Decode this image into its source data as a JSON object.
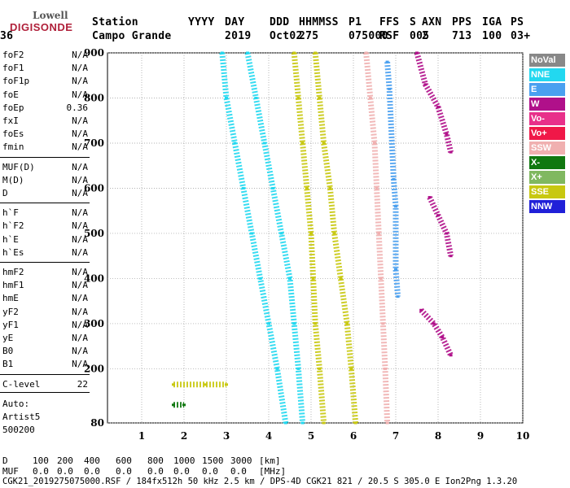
{
  "logo": {
    "line1": "Lowell",
    "line2": "DIGISONDE"
  },
  "header": {
    "labels": [
      "Station",
      "YYYY",
      "DAY",
      "DDD",
      "HHMMSS",
      "P1",
      "FFS",
      "S",
      "AXN",
      "PPS",
      "IGA",
      "PS"
    ],
    "values": [
      "Campo Grande",
      "2019",
      "Oct02",
      "275",
      "075000",
      "RSF",
      "005",
      "2",
      "713",
      "100",
      "03+",
      "36"
    ]
  },
  "params_group1": [
    {
      "name": "foF2",
      "value": "N/A"
    },
    {
      "name": "foF1",
      "value": "N/A"
    },
    {
      "name": "foF1p",
      "value": "N/A"
    },
    {
      "name": "foE",
      "value": "N/A"
    },
    {
      "name": "foEp",
      "value": "0.36"
    },
    {
      "name": "fxI",
      "value": "N/A"
    },
    {
      "name": "foEs",
      "value": "N/A"
    },
    {
      "name": "fmin",
      "value": "N/A"
    }
  ],
  "params_group2": [
    {
      "name": "MUF(D)",
      "value": "N/A"
    },
    {
      "name": "M(D)",
      "value": "N/A"
    },
    {
      "name": "D",
      "value": "N/A"
    }
  ],
  "params_group3": [
    {
      "name": "h`F",
      "value": "N/A"
    },
    {
      "name": "h`F2",
      "value": "N/A"
    },
    {
      "name": "h`E",
      "value": "N/A"
    },
    {
      "name": "h`Es",
      "value": "N/A"
    }
  ],
  "params_group4": [
    {
      "name": "hmF2",
      "value": "N/A"
    },
    {
      "name": "hmF1",
      "value": "N/A"
    },
    {
      "name": "hmE",
      "value": "N/A"
    },
    {
      "name": "yF2",
      "value": "N/A"
    },
    {
      "name": "yF1",
      "value": "N/A"
    },
    {
      "name": "yE",
      "value": "N/A"
    },
    {
      "name": "B0",
      "value": "N/A"
    },
    {
      "name": "B1",
      "value": "N/A"
    }
  ],
  "clevel": {
    "name": "C-level",
    "value": "22"
  },
  "auto": {
    "line1": "Auto:",
    "line2": "Artist5",
    "line3": "500200"
  },
  "legend": [
    {
      "label": "NoVal",
      "color": "#888888"
    },
    {
      "label": "NNE",
      "color": "#22d8f0"
    },
    {
      "label": "E",
      "color": "#4aa0f0"
    },
    {
      "label": "W",
      "color": "#b0108a"
    },
    {
      "label": "Vo-",
      "color": "#e8308a"
    },
    {
      "label": "Vo+",
      "color": "#f01848"
    },
    {
      "label": "SSW",
      "color": "#f0b0b0"
    },
    {
      "label": "X-",
      "color": "#107810"
    },
    {
      "label": "X+",
      "color": "#80b860"
    },
    {
      "label": "SSE",
      "color": "#c8c810"
    },
    {
      "label": "NNW",
      "color": "#2020d8"
    }
  ],
  "footer": {
    "d_label": "D",
    "d_values": [
      "100",
      "200",
      "400",
      "600",
      "800",
      "1000",
      "1500",
      "3000",
      "[km]"
    ],
    "muf_label": "MUF",
    "muf_values": [
      "0.0",
      "0.0",
      "0.0",
      "0.0",
      "0.0",
      "0.0",
      "0.0",
      "0.0",
      "[MHz]"
    ],
    "info": "CGK21_2019275075000.RSF / 184fx512h 50 kHz 2.5 km / DPS-4D CGK21 821 / 20.5 S 305.0 E Ion2Png 1.3.20"
  },
  "chart_data": {
    "type": "scatter",
    "xlim": [
      1,
      10
    ],
    "ylim": [
      80,
      900
    ],
    "x_ticks": [
      "1",
      "2",
      "3",
      "4",
      "5",
      "6",
      "7",
      "8",
      "9",
      "10"
    ],
    "y_ticks": [
      "80",
      "200",
      "300",
      "400",
      "500",
      "600",
      "700",
      "800",
      "900"
    ],
    "x_tick_values": [
      1,
      2,
      3,
      4,
      5,
      6,
      7,
      8,
      9,
      10
    ],
    "y_tick_values": [
      80,
      200,
      300,
      400,
      500,
      600,
      700,
      800,
      900
    ],
    "grid": true,
    "traces": [
      {
        "name": "NNE",
        "points": [
          [
            2.9,
            900
          ],
          [
            3.0,
            800
          ],
          [
            3.2,
            700
          ],
          [
            3.4,
            600
          ],
          [
            3.6,
            500
          ],
          [
            3.8,
            400
          ],
          [
            4.0,
            300
          ],
          [
            4.2,
            200
          ],
          [
            4.4,
            80
          ]
        ]
      },
      {
        "name": "NNE",
        "points": [
          [
            3.5,
            900
          ],
          [
            3.7,
            800
          ],
          [
            3.9,
            700
          ],
          [
            4.1,
            600
          ],
          [
            4.3,
            500
          ],
          [
            4.5,
            400
          ],
          [
            4.6,
            300
          ],
          [
            4.7,
            200
          ],
          [
            4.8,
            80
          ]
        ]
      },
      {
        "name": "SSE",
        "points": [
          [
            4.6,
            900
          ],
          [
            4.7,
            800
          ],
          [
            4.8,
            700
          ],
          [
            4.9,
            600
          ],
          [
            5.0,
            500
          ],
          [
            5.05,
            400
          ],
          [
            5.1,
            300
          ],
          [
            5.2,
            200
          ],
          [
            5.3,
            80
          ]
        ]
      },
      {
        "name": "SSE",
        "points": [
          [
            5.1,
            900
          ],
          [
            5.2,
            800
          ],
          [
            5.3,
            700
          ],
          [
            5.45,
            600
          ],
          [
            5.55,
            500
          ],
          [
            5.7,
            400
          ],
          [
            5.85,
            300
          ],
          [
            5.95,
            200
          ],
          [
            6.05,
            80
          ]
        ]
      },
      {
        "name": "SSW",
        "points": [
          [
            6.3,
            900
          ],
          [
            6.4,
            800
          ],
          [
            6.5,
            700
          ],
          [
            6.55,
            600
          ],
          [
            6.6,
            500
          ],
          [
            6.65,
            400
          ],
          [
            6.7,
            300
          ],
          [
            6.75,
            200
          ],
          [
            6.8,
            80
          ]
        ]
      },
      {
        "name": "E",
        "points": [
          [
            6.8,
            880
          ],
          [
            6.85,
            820
          ],
          [
            6.95,
            620
          ],
          [
            7.0,
            560
          ],
          [
            7.0,
            420
          ],
          [
            7.05,
            360
          ]
        ]
      },
      {
        "name": "W",
        "points": [
          [
            7.5,
            900
          ],
          [
            7.7,
            830
          ],
          [
            8.0,
            780
          ],
          [
            8.2,
            720
          ],
          [
            8.3,
            680
          ]
        ]
      },
      {
        "name": "W",
        "points": [
          [
            7.8,
            580
          ],
          [
            8.0,
            540
          ],
          [
            8.2,
            500
          ],
          [
            8.3,
            450
          ]
        ]
      },
      {
        "name": "W",
        "points": [
          [
            7.6,
            330
          ],
          [
            7.9,
            300
          ],
          [
            8.1,
            270
          ],
          [
            8.3,
            230
          ]
        ]
      },
      {
        "name": "SSE",
        "points": [
          [
            1.75,
            165
          ],
          [
            2.5,
            165
          ],
          [
            3.0,
            165
          ]
        ]
      },
      {
        "name": "X-",
        "points": [
          [
            1.75,
            120
          ],
          [
            2.0,
            120
          ]
        ]
      }
    ]
  }
}
